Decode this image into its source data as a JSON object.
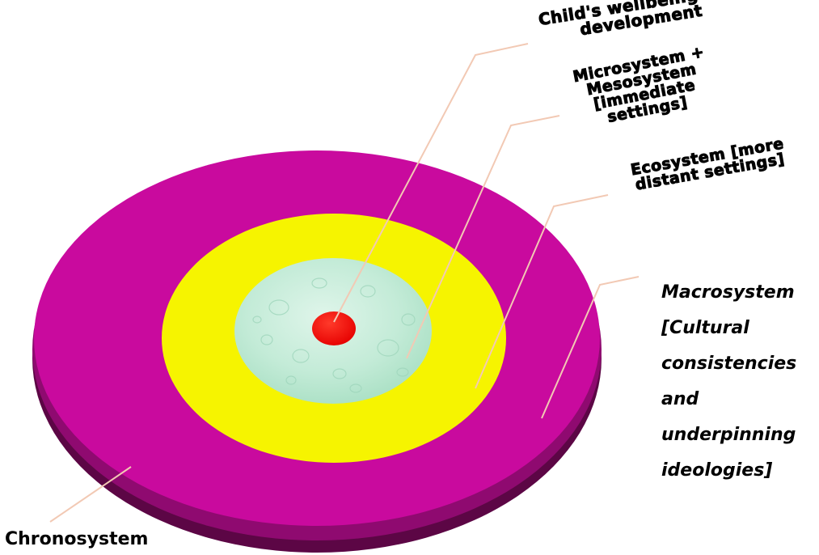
{
  "labels": {
    "center": "Child's wellbeing and development",
    "micro": "Microsystem + Mesosystem [immediate settings]",
    "eco": "Ecosystem [more distant settings]",
    "macro": "Macrosystem [Cultural consistencies and underpinning ideologies]",
    "chrono": "Chronosystem"
  },
  "colors": {
    "macro_ring": "#c90a9e",
    "macro_edge": "#6a0750",
    "eco_ring": "#f6f400",
    "micro_ring": "#bfe9d4",
    "center": "#ff0000",
    "leader_lines": "#f2c9b4"
  }
}
